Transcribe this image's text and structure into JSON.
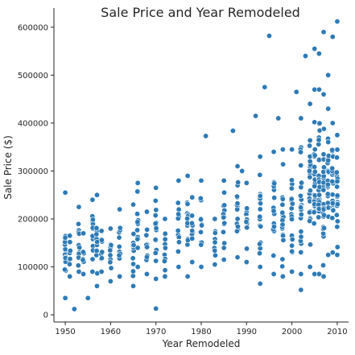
{
  "chart_data": {
    "type": "scatter",
    "title": "Sale Price and Year Remodeled",
    "xlabel": "Year Remodeled",
    "ylabel": "Sale Price ($)",
    "xlim": [
      1947.5,
      2012.5
    ],
    "ylim": [
      -15000,
      640000
    ],
    "xticks": [
      1950,
      1960,
      1970,
      1980,
      1990,
      2000,
      2010
    ],
    "yticks": [
      0,
      100000,
      200000,
      300000,
      400000,
      500000,
      600000
    ],
    "grid": false,
    "color": "#2d7bb6",
    "notable_points": [
      {
        "x": 1952,
        "y": 12000
      },
      {
        "x": 1955,
        "y": 35000
      },
      {
        "x": 1970,
        "y": 13000
      },
      {
        "x": 1981,
        "y": 373000
      },
      {
        "x": 1987,
        "y": 384000
      },
      {
        "x": 1989,
        "y": 300000
      },
      {
        "x": 1992,
        "y": 415000
      },
      {
        "x": 1994,
        "y": 475000
      },
      {
        "x": 1995,
        "y": 582000
      },
      {
        "x": 1997,
        "y": 410000
      },
      {
        "x": 2001,
        "y": 465000
      },
      {
        "x": 2003,
        "y": 540000
      },
      {
        "x": 2005,
        "y": 555000
      },
      {
        "x": 2006,
        "y": 545000
      },
      {
        "x": 2007,
        "y": 590000
      },
      {
        "x": 2008,
        "y": 500000
      },
      {
        "x": 2009,
        "y": 580000
      },
      {
        "x": 2010,
        "y": 612000
      },
      {
        "x": 1993,
        "y": 65000
      },
      {
        "x": 2002,
        "y": 52000
      }
    ],
    "cluster_by_year": [
      {
        "x": 1950,
        "y_min": 35000,
        "y_max": 255000
      },
      {
        "x": 1951,
        "y_min": 80000,
        "y_max": 165000
      },
      {
        "x": 1953,
        "y_min": 90000,
        "y_max": 225000
      },
      {
        "x": 1954,
        "y_min": 85000,
        "y_max": 170000
      },
      {
        "x": 1956,
        "y_min": 90000,
        "y_max": 240000
      },
      {
        "x": 1957,
        "y_min": 60000,
        "y_max": 250000
      },
      {
        "x": 1958,
        "y_min": 90000,
        "y_max": 175000
      },
      {
        "x": 1960,
        "y_min": 70000,
        "y_max": 180000
      },
      {
        "x": 1962,
        "y_min": 80000,
        "y_max": 220000
      },
      {
        "x": 1965,
        "y_min": 60000,
        "y_max": 230000
      },
      {
        "x": 1966,
        "y_min": 100000,
        "y_max": 275000
      },
      {
        "x": 1968,
        "y_min": 85000,
        "y_max": 215000
      },
      {
        "x": 1970,
        "y_min": 75000,
        "y_max": 265000
      },
      {
        "x": 1972,
        "y_min": 80000,
        "y_max": 200000
      },
      {
        "x": 1975,
        "y_min": 100000,
        "y_max": 280000
      },
      {
        "x": 1977,
        "y_min": 80000,
        "y_max": 290000
      },
      {
        "x": 1978,
        "y_min": 110000,
        "y_max": 245000
      },
      {
        "x": 1980,
        "y_min": 100000,
        "y_max": 280000
      },
      {
        "x": 1983,
        "y_min": 105000,
        "y_max": 200000
      },
      {
        "x": 1985,
        "y_min": 115000,
        "y_max": 280000
      },
      {
        "x": 1988,
        "y_min": 120000,
        "y_max": 310000
      },
      {
        "x": 1990,
        "y_min": 110000,
        "y_max": 275000
      },
      {
        "x": 1993,
        "y_min": 100000,
        "y_max": 330000
      },
      {
        "x": 1996,
        "y_min": 85000,
        "y_max": 340000
      },
      {
        "x": 1998,
        "y_min": 80000,
        "y_max": 345000
      },
      {
        "x": 2000,
        "y_min": 90000,
        "y_max": 345000
      },
      {
        "x": 2002,
        "y_min": 85000,
        "y_max": 410000
      },
      {
        "x": 2004,
        "y_min": 100000,
        "y_max": 440000
      },
      {
        "x": 2005,
        "y_min": 85000,
        "y_max": 470000
      },
      {
        "x": 2006,
        "y_min": 85000,
        "y_max": 470000
      },
      {
        "x": 2007,
        "y_min": 80000,
        "y_max": 460000
      },
      {
        "x": 2008,
        "y_min": 125000,
        "y_max": 430000
      },
      {
        "x": 2009,
        "y_min": 130000,
        "y_max": 400000
      },
      {
        "x": 2010,
        "y_min": 125000,
        "y_max": 375000
      }
    ]
  }
}
